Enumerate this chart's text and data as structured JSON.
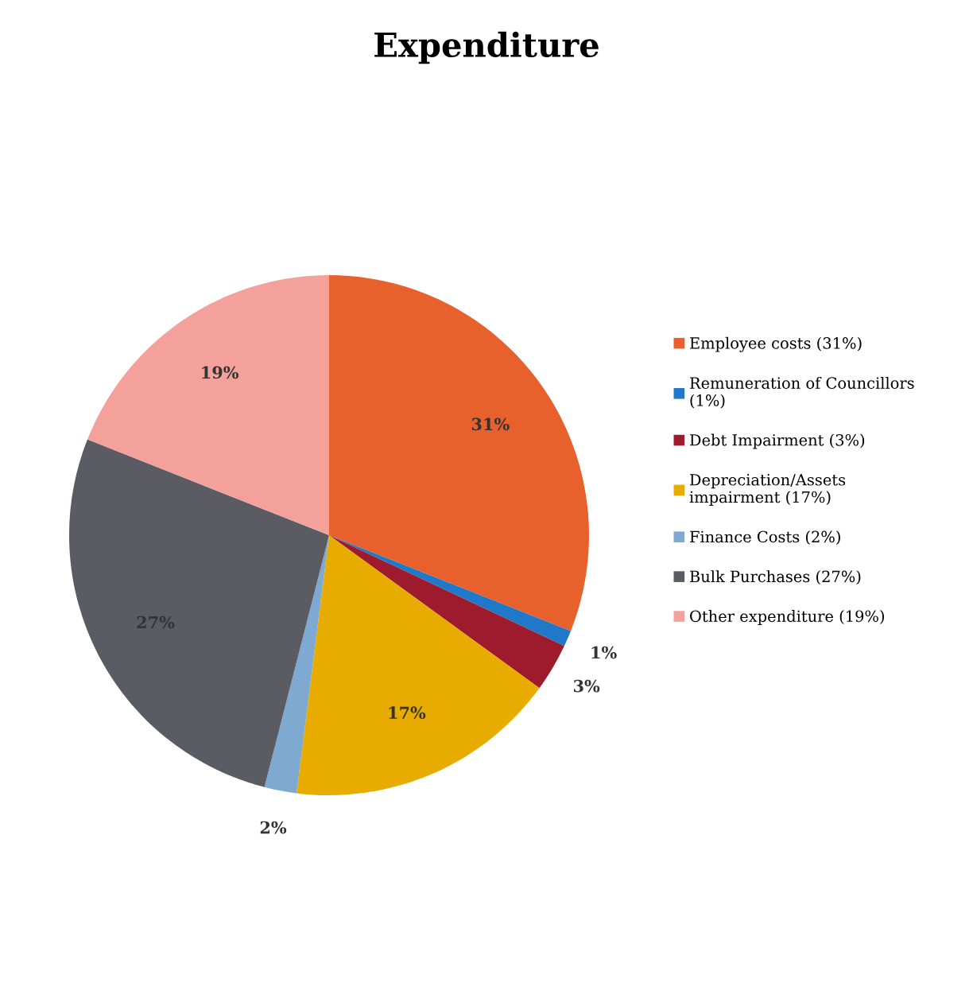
{
  "chart_data": {
    "type": "pie",
    "title": "Expenditure",
    "categories": [
      "Employee costs (31%)",
      "Remuneration of Councillors (1%)",
      "Debt Impairment (3%)",
      "Depreciation/Assets impairment (17%)",
      "Finance Costs (2%)",
      "Bulk Purchases (27%)",
      "Other expenditure (19%)"
    ],
    "values": [
      31,
      1,
      3,
      17,
      2,
      27,
      19
    ],
    "colors": [
      "#e8602c",
      "#1f78c8",
      "#9e1b2e",
      "#e8ac00",
      "#7ea9d0",
      "#5b5b63",
      "#f4a19b"
    ],
    "value_labels": [
      "31%",
      "1%",
      "3%",
      "17%",
      "2%",
      "27%",
      "19%"
    ],
    "legend": "right"
  }
}
